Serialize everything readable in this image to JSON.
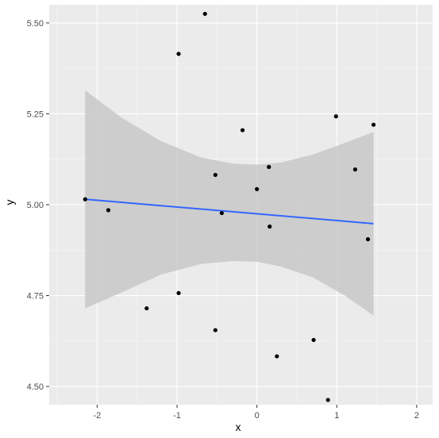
{
  "chart_data": {
    "type": "scatter",
    "title": "",
    "xlabel": "x",
    "ylabel": "y",
    "xlim": [
      -2.6,
      2.2
    ],
    "ylim": [
      4.45,
      5.55
    ],
    "x_ticks": [
      -2,
      -1,
      0,
      1,
      2
    ],
    "x_tick_labels": [
      "-2",
      "-1",
      "0",
      "1",
      "2"
    ],
    "y_ticks": [
      4.5,
      4.75,
      5.0,
      5.25,
      5.5
    ],
    "y_tick_labels": [
      "4.50",
      "4.75",
      "5.00",
      "5.25",
      "5.50"
    ],
    "x_minor_ticks": [
      -2.5,
      -1.5,
      -0.5,
      0.5,
      1.5
    ],
    "y_minor_ticks": [
      4.625,
      4.875,
      5.125,
      5.375
    ],
    "grid": true,
    "points": [
      {
        "x": -2.15,
        "y": 5.015
      },
      {
        "x": -1.86,
        "y": 4.985
      },
      {
        "x": -1.38,
        "y": 4.715
      },
      {
        "x": -0.98,
        "y": 5.415
      },
      {
        "x": -0.98,
        "y": 4.757
      },
      {
        "x": -0.65,
        "y": 5.525
      },
      {
        "x": -0.52,
        "y": 5.082
      },
      {
        "x": -0.52,
        "y": 4.655
      },
      {
        "x": -0.44,
        "y": 4.977
      },
      {
        "x": -0.18,
        "y": 5.205
      },
      {
        "x": 0.0,
        "y": 5.043
      },
      {
        "x": 0.15,
        "y": 5.104
      },
      {
        "x": 0.16,
        "y": 4.94
      },
      {
        "x": 0.25,
        "y": 4.583
      },
      {
        "x": 0.71,
        "y": 4.628
      },
      {
        "x": 0.89,
        "y": 4.463
      },
      {
        "x": 0.99,
        "y": 5.243
      },
      {
        "x": 1.23,
        "y": 5.097
      },
      {
        "x": 1.39,
        "y": 4.905
      },
      {
        "x": 1.46,
        "y": 5.22
      }
    ],
    "fit_line": {
      "x": [
        -2.15,
        1.46
      ],
      "y": [
        5.015,
        4.948
      ]
    },
    "confidence_band": {
      "x": [
        -2.15,
        -1.7,
        -1.2,
        -0.7,
        -0.3,
        0.0,
        0.3,
        0.7,
        1.1,
        1.46
      ],
      "upper": [
        5.315,
        5.24,
        5.175,
        5.13,
        5.113,
        5.11,
        5.116,
        5.138,
        5.17,
        5.2
      ],
      "lower": [
        4.715,
        4.758,
        4.808,
        4.837,
        4.845,
        4.843,
        4.83,
        4.8,
        4.75,
        4.695
      ]
    },
    "colors": {
      "panel": "#ebebeb",
      "grid_major": "#ffffff",
      "grid_minor": "#f5f5f5",
      "points": "#000000",
      "line": "#3366ff",
      "band": "#c8c8c8"
    }
  }
}
